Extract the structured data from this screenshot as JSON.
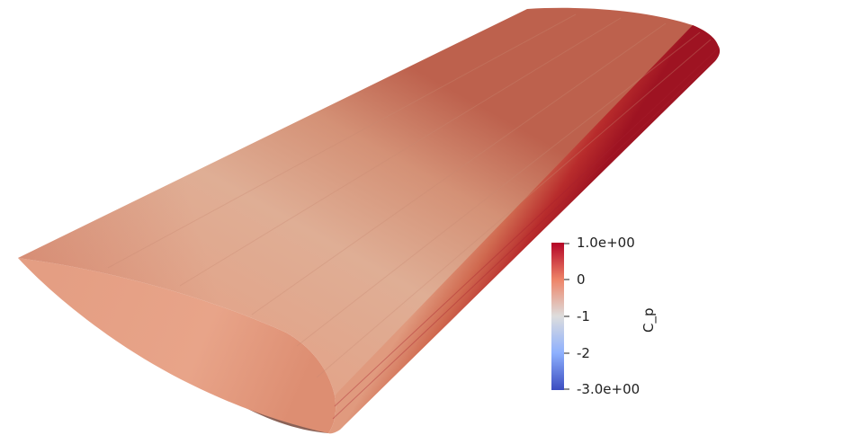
{
  "scene": {
    "surface": "wing",
    "scalar_field": "C_p"
  },
  "colorbar": {
    "title": "C_p",
    "colormap": "cool-to-warm",
    "range": [
      -3.0,
      1.0
    ],
    "colors": {
      "min": "#3b4cc0",
      "mid": "#dddddd",
      "max": "#b40426"
    },
    "ticks": [
      {
        "value": 1,
        "label": "1.0e+00"
      },
      {
        "value": 0,
        "label": "0"
      },
      {
        "value": -1,
        "label": "-1"
      },
      {
        "value": -2,
        "label": "-2"
      },
      {
        "value": -3,
        "label": "-3.0e+00"
      }
    ]
  }
}
